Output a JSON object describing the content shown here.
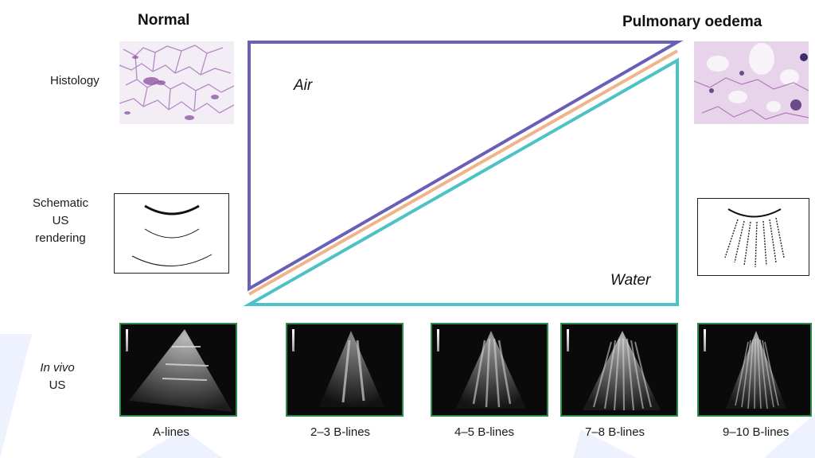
{
  "headers": {
    "normal": "Normal",
    "oedema": "Pulmonary oedema"
  },
  "row_labels": {
    "histology": "Histology",
    "schematic": [
      "Schematic",
      "US",
      "rendering"
    ],
    "invivo": [
      "In vivo",
      "US"
    ]
  },
  "center": {
    "air_label": "Air",
    "water_label": "Water"
  },
  "colors": {
    "air_frame": "#6a5fb8",
    "orange_line": "#f0b48a",
    "water_frame": "#4cc1c6",
    "us_border": "#2b8c4b"
  },
  "ultrasound_captions": [
    "A-lines",
    "2–3 B-lines",
    "4–5 B-lines",
    "7–8 B-lines",
    "9–10 B-lines"
  ]
}
